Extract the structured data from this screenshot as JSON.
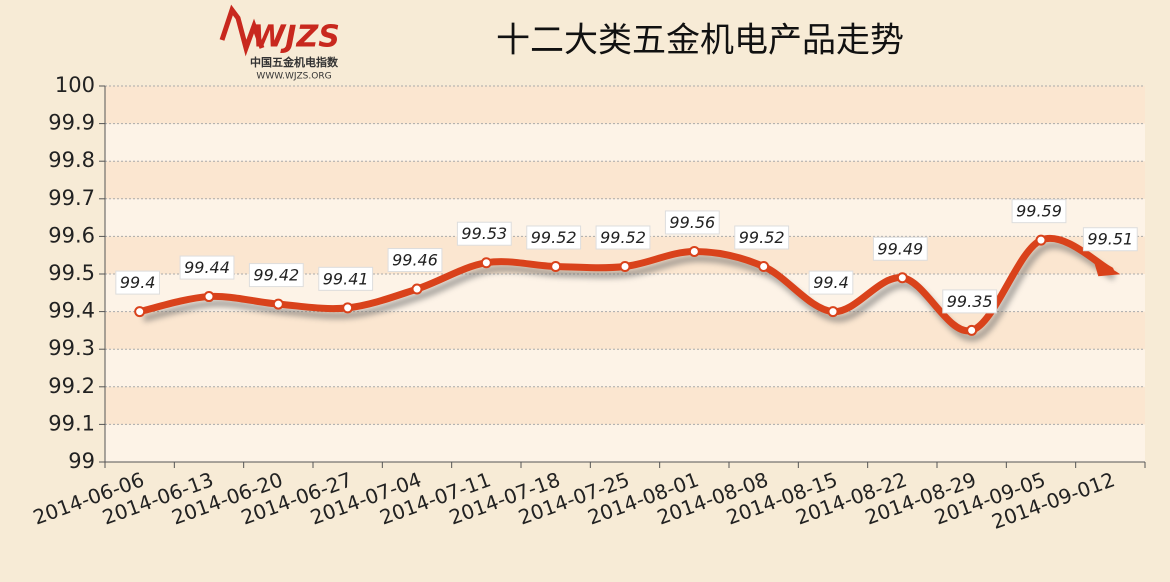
{
  "logo": {
    "mark": "WJZS",
    "name": "中国五金机电指数",
    "url": "WWW.WJZS.ORG"
  },
  "chart_data": {
    "type": "line",
    "title": "十二大类五金机电产品走势",
    "categories": [
      "2014-06-06",
      "2014-06-13",
      "2014-06-20",
      "2014-06-27",
      "2014-07-04",
      "2014-07-11",
      "2014-07-18",
      "2014-07-25",
      "2014-08-01",
      "2014-08-08",
      "2014-08-15",
      "2014-08-22",
      "2014-08-29",
      "2014-09-05",
      "2014-09-012"
    ],
    "values": [
      99.4,
      99.44,
      99.42,
      99.41,
      99.46,
      99.53,
      99.52,
      99.52,
      99.56,
      99.52,
      99.4,
      99.49,
      99.35,
      99.59,
      99.51
    ],
    "color": "#d9421b",
    "ylim": [
      99,
      100
    ],
    "yticks": [
      99,
      99.1,
      99.2,
      99.3,
      99.4,
      99.5,
      99.6,
      99.7,
      99.8,
      99.9,
      100
    ],
    "grid": true
  }
}
